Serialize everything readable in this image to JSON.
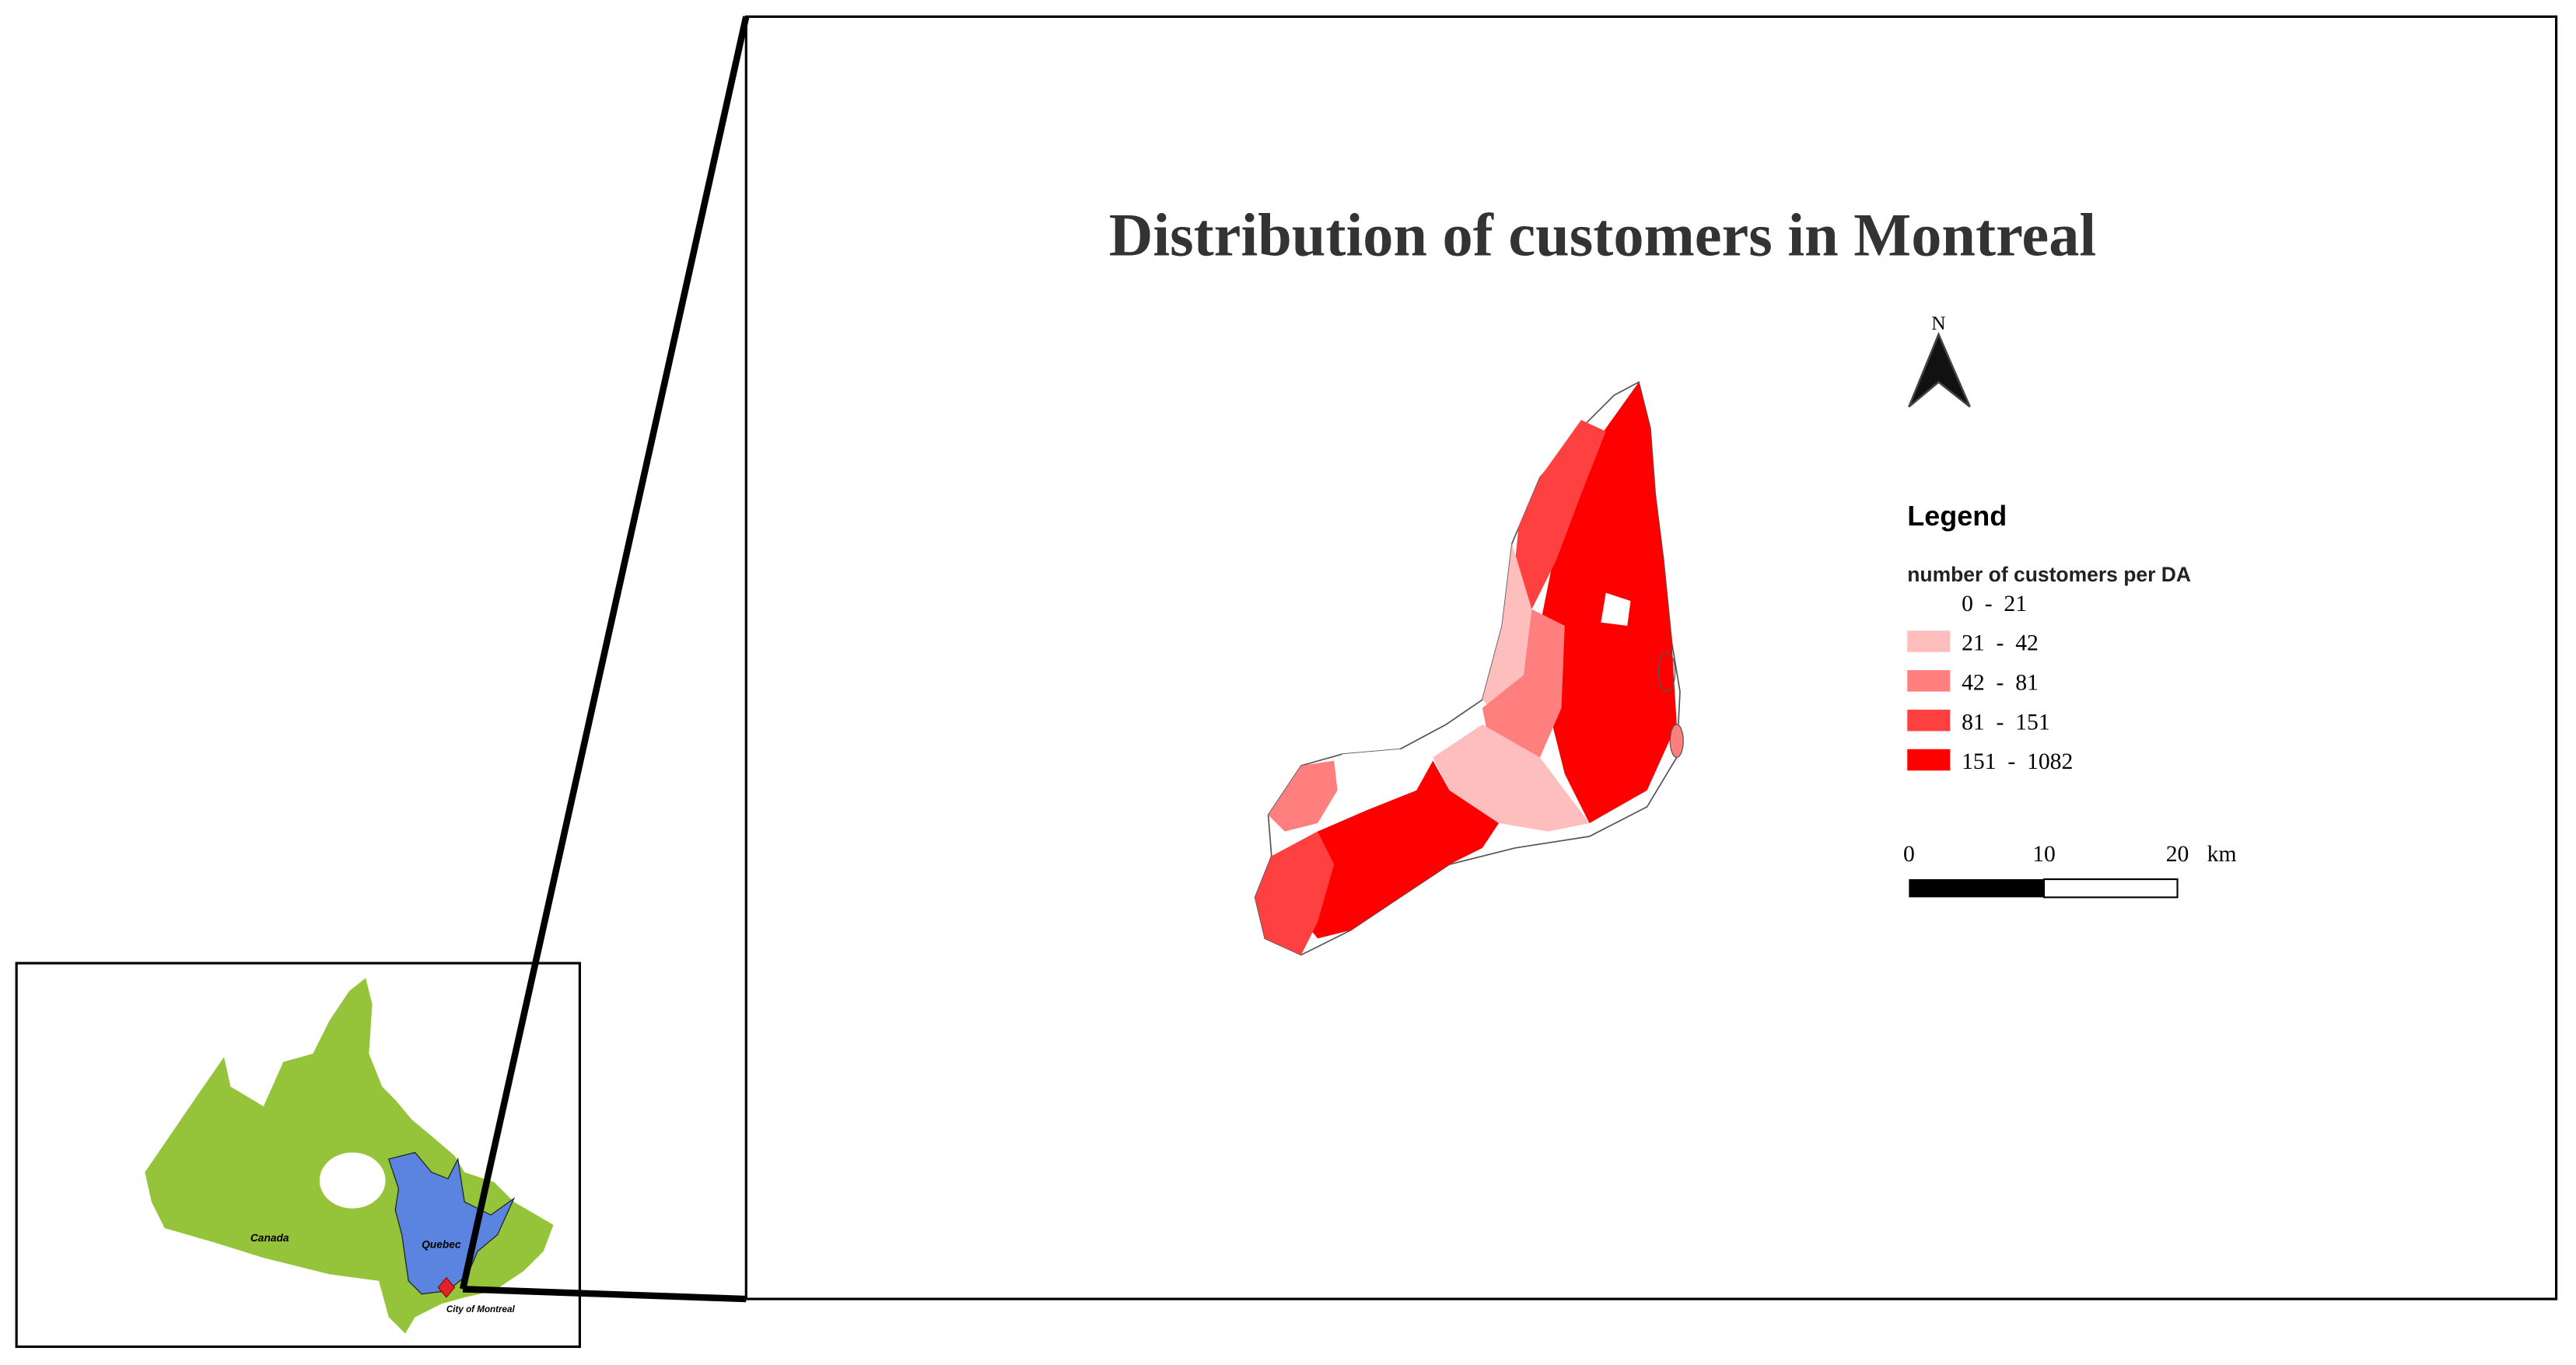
{
  "title": "Distribution of customers in Montreal",
  "north_arrow": {
    "label": "N",
    "icon": "north-arrow-icon"
  },
  "legend": {
    "title": "Legend",
    "subtitle": "number of customers per DA",
    "items": [
      {
        "label": "0  -  21",
        "color": "#ffffff"
      },
      {
        "label": "21  -  42",
        "color": "#ffbebe"
      },
      {
        "label": "42  -  81",
        "color": "#ff7f7f"
      },
      {
        "label": "81  -  151",
        "color": "#ff4040"
      },
      {
        "label": "151  -  1082",
        "color": "#ff0000"
      }
    ]
  },
  "scale_bar": {
    "labels": [
      "0",
      "10",
      "20"
    ],
    "unit": "km"
  },
  "inset": {
    "canada_label": "Canada",
    "quebec_label": "Quebec",
    "city_label": "City of Montreal",
    "colors": {
      "canada": "#95c43a",
      "quebec": "#5b84e0",
      "city": "#e0232b"
    }
  }
}
